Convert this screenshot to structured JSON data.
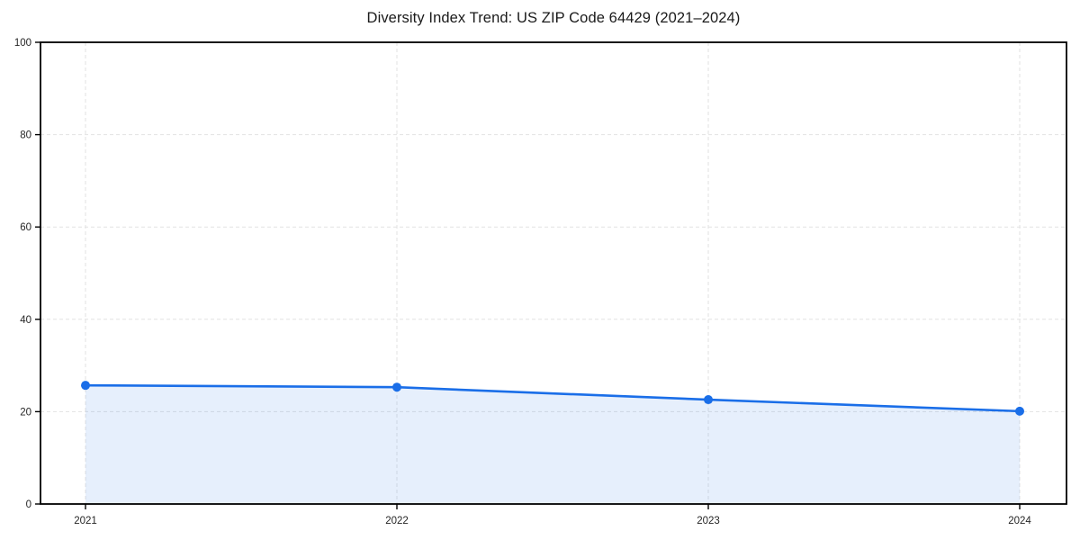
{
  "chart_data": {
    "type": "area",
    "title": "Diversity Index Trend: US ZIP Code 64429 (2021–2024)",
    "series_name": "Diversity Index",
    "x": [
      2021,
      2022,
      2023,
      2024
    ],
    "xtick_labels": [
      "2021",
      "2022",
      "2023",
      "2024"
    ],
    "values": [
      25.7,
      25.3,
      22.6,
      20.1
    ],
    "xlabel": "",
    "ylabel": "",
    "ylim": [
      0,
      100
    ],
    "yticks": [
      0,
      20,
      40,
      60,
      80,
      100
    ],
    "grid": true,
    "grid_style": "dashed",
    "legend": "none",
    "colors": {
      "line": "#1a6ee8",
      "marker": "#1a6ee8",
      "fill": "#e8effc",
      "grid": "#e2e2e2",
      "spine": "#000000",
      "tick_label": "#262626",
      "title": "#1a1a1a",
      "background": "#ffffff"
    }
  }
}
